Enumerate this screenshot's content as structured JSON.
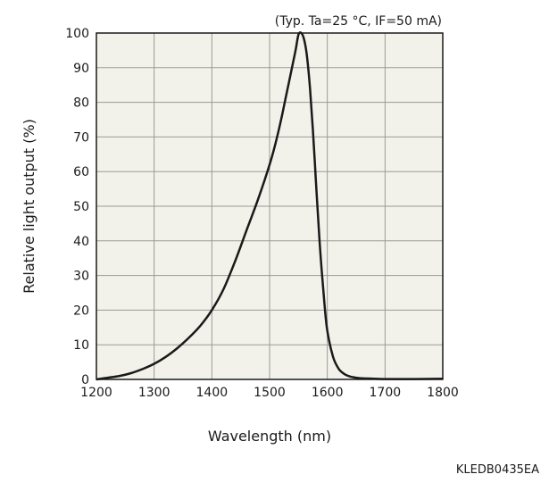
{
  "chart_data": {
    "type": "line",
    "annotation": "(Typ. Ta=25 °C, IF=50 mA)",
    "xlabel": "Wavelength (nm)",
    "ylabel": "Relative light output (%)",
    "xlim": [
      1200,
      1800
    ],
    "ylim": [
      0,
      100
    ],
    "xticks": [
      1200,
      1300,
      1400,
      1500,
      1600,
      1700,
      1800
    ],
    "yticks": [
      0,
      10,
      20,
      30,
      40,
      50,
      60,
      70,
      80,
      90,
      100
    ],
    "grid": true,
    "series": [
      {
        "x": [
          1200,
          1220,
          1240,
          1260,
          1280,
          1300,
          1320,
          1340,
          1360,
          1380,
          1400,
          1420,
          1440,
          1460,
          1480,
          1500,
          1510,
          1520,
          1530,
          1540,
          1545,
          1550,
          1555,
          1560,
          1565,
          1570,
          1575,
          1580,
          1585,
          1590,
          1595,
          1600,
          1610,
          1620,
          1630,
          1640,
          1650,
          1660,
          1680,
          1700,
          1750,
          1800
        ],
        "y": [
          0,
          0.5,
          1,
          1.8,
          3,
          4.5,
          6.5,
          9,
          12,
          15.5,
          20,
          26,
          34,
          43,
          52,
          62,
          68,
          75,
          83,
          91,
          95,
          99.5,
          100,
          98,
          93,
          84,
          72,
          58,
          44,
          32,
          22,
          14,
          6.5,
          3,
          1.5,
          0.8,
          0.5,
          0.3,
          0.2,
          0.1,
          0.1,
          0.2
        ]
      }
    ],
    "line_color": "#1a1a1a",
    "plot_background": "#f3f2ea",
    "grid_color": "#9a9a96"
  },
  "footer": {
    "code": "KLEDB0435EA"
  }
}
